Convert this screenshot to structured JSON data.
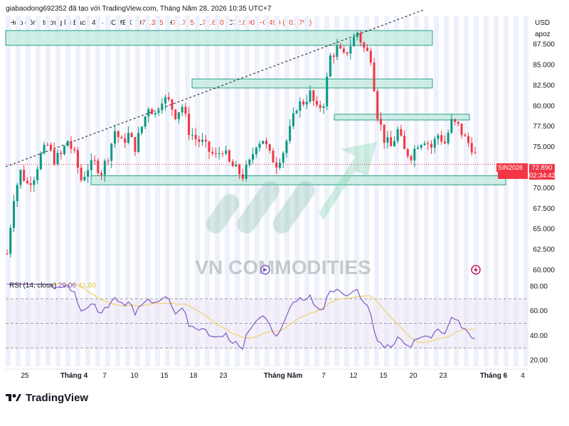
{
  "header": {
    "credit": "giabaodong692352 đã tạo với TradingView.com, Tháng Năm 28, 2026 10:35 UTC+7"
  },
  "symbol": {
    "name": "Hợp đồng tương lai Bạc · 4h · COMEX",
    "o_label": "O",
    "o": "73.385",
    "h_label": "H",
    "h": "73.755",
    "l_label": "L",
    "l": "72.620",
    "c_label": "C",
    "c": "72.890",
    "change": "−0.490 (−0.67%)"
  },
  "price_axis": {
    "currency": "USD",
    "mode": "apoz",
    "ticks": [
      "87.500",
      "85.000",
      "82.500",
      "80.000",
      "77.500",
      "75.000",
      "72.500",
      "70.000",
      "67.500",
      "65.000",
      "62.500",
      "60.000"
    ]
  },
  "last_price": {
    "ticker": "SIN2026",
    "value": "72.890",
    "countdown": "02:34:42"
  },
  "rsi": {
    "title": "RSI (14, close)",
    "value": "29.06",
    "ma_value": "41.80",
    "ticks": [
      "80.00",
      "60.00",
      "40.00",
      "20.00"
    ]
  },
  "time_axis": {
    "ticks": [
      "25",
      "Tháng 4",
      "7",
      "10",
      "15",
      "18",
      "23",
      "Tháng Năm",
      "7",
      "12",
      "15",
      "20",
      "23",
      "Tháng 6",
      "4"
    ]
  },
  "watermark": "VN COMMODITIES",
  "brand": "TradingView",
  "colors": {
    "up": "#089981",
    "down": "#f23645",
    "zone_fill": "#bfe8dc",
    "zone_border": "#2a9d8f",
    "rsi_line": "#7e57c2",
    "rsi_ma": "#f2cf6b"
  },
  "chart_data": {
    "type": "candlestick",
    "interval": "4h",
    "y_range": [
      59.0,
      90.5
    ],
    "rsi_range": [
      15,
      85
    ],
    "rsi_levels": [
      70,
      50,
      30
    ],
    "price_path": [
      [
        0,
        62
      ],
      [
        2,
        69
      ],
      [
        4,
        72
      ],
      [
        6,
        70.5
      ],
      [
        8,
        71.5
      ],
      [
        10,
        74
      ],
      [
        12,
        75.2
      ],
      [
        14,
        73.5
      ],
      [
        16,
        74
      ],
      [
        18,
        75.8
      ],
      [
        20,
        74
      ],
      [
        22,
        71
      ],
      [
        24,
        72.5
      ],
      [
        26,
        73
      ],
      [
        28,
        72
      ],
      [
        30,
        74
      ],
      [
        32,
        77
      ],
      [
        34,
        75.5
      ],
      [
        36,
        76.5
      ],
      [
        38,
        75
      ],
      [
        40,
        77.5
      ],
      [
        42,
        80
      ],
      [
        44,
        79
      ],
      [
        46,
        81
      ],
      [
        48,
        80.5
      ],
      [
        50,
        79
      ],
      [
        52,
        80
      ],
      [
        54,
        77
      ],
      [
        56,
        76
      ],
      [
        58,
        75.5
      ],
      [
        60,
        74.5
      ],
      [
        62,
        73.8
      ],
      [
        64,
        74.8
      ],
      [
        66,
        73
      ],
      [
        68,
        72.2
      ],
      [
        70,
        71.5
      ],
      [
        72,
        73
      ],
      [
        74,
        75.5
      ],
      [
        76,
        76
      ],
      [
        78,
        74
      ],
      [
        80,
        73
      ],
      [
        82,
        74.5
      ],
      [
        84,
        77
      ],
      [
        86,
        80
      ],
      [
        88,
        80.5
      ],
      [
        90,
        81.5
      ],
      [
        92,
        79.5
      ],
      [
        94,
        80.5
      ],
      [
        96,
        86
      ],
      [
        98,
        87
      ],
      [
        100,
        86
      ],
      [
        102,
        87.5
      ],
      [
        104,
        89
      ],
      [
        106,
        87
      ],
      [
        108,
        86
      ],
      [
        110,
        79
      ],
      [
        112,
        76
      ],
      [
        114,
        75
      ],
      [
        116,
        77
      ],
      [
        118,
        74.5
      ],
      [
        120,
        74
      ],
      [
        122,
        75.5
      ],
      [
        124,
        76
      ],
      [
        126,
        75
      ],
      [
        128,
        76.5
      ],
      [
        130,
        75.5
      ],
      [
        132,
        78
      ],
      [
        134,
        77.5
      ],
      [
        136,
        76
      ],
      [
        138,
        75
      ],
      [
        140,
        72.9
      ]
    ]
  }
}
